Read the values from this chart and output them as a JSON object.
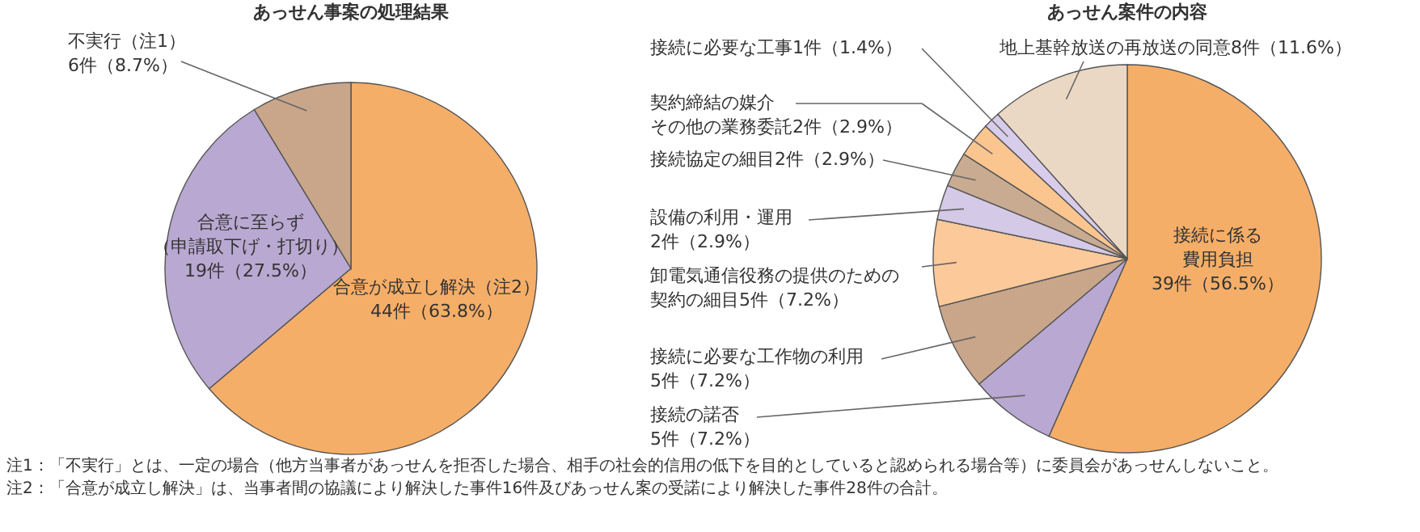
{
  "chart_data": [
    {
      "type": "pie",
      "title": "あっせん事案の処理結果",
      "categories": [
        "合意が成立し解決（注2）",
        "合意に至らず（申請取下げ・打切り）",
        "不実行（注1）"
      ],
      "values": [
        63.8,
        27.5,
        8.7
      ],
      "colors": [
        "#f5ae68",
        "#b9a8d1",
        "#c9a68a"
      ],
      "value_labels": [
        "44件（63.8%）",
        "19件（27.5%）",
        "6件（8.7%）"
      ],
      "annotations": [
        "注1：「不実行」とは、一定の場合（他方当事者があっせんを拒否した場合、相手の社会的信用の低下を目的としていると認められる場合等）に委員会があっせんしないこと。",
        "注2：「合意が成立し解決」は、当事者間の協議により解決した事件16件及びあっせん案の受諾により解決した事件28件の合計。"
      ]
    },
    {
      "type": "pie",
      "title": "あっせん案件の内容",
      "categories": [
        "接続に係る費用負担",
        "接続の諾否",
        "接続に必要な工作物の利用",
        "卸電気通信役務の提供のための契約の細目",
        "設備の利用・運用",
        "接続協定の細目",
        "契約締結の媒介その他の業務委託",
        "接続に必要な工事",
        "地上基幹放送の再放送の同意"
      ],
      "values": [
        56.5,
        7.2,
        7.2,
        7.2,
        2.9,
        2.9,
        2.9,
        1.4,
        11.6
      ],
      "colors": [
        "#f5ae68",
        "#b9a8d1",
        "#c9a68a",
        "#fcc99a",
        "#d4c9e6",
        "#c8ab91",
        "#fbc590",
        "#d8cceb",
        "#ead8c4"
      ],
      "value_labels": [
        "39件（56.5%）",
        "5件（7.2%）",
        "5件（7.2%）",
        "5件（7.2%）",
        "2件（2.9%）",
        "2件（2.9%）",
        "2件（2.9%）",
        "1件（1.4%）",
        "8件（11.6%）"
      ]
    }
  ]
}
